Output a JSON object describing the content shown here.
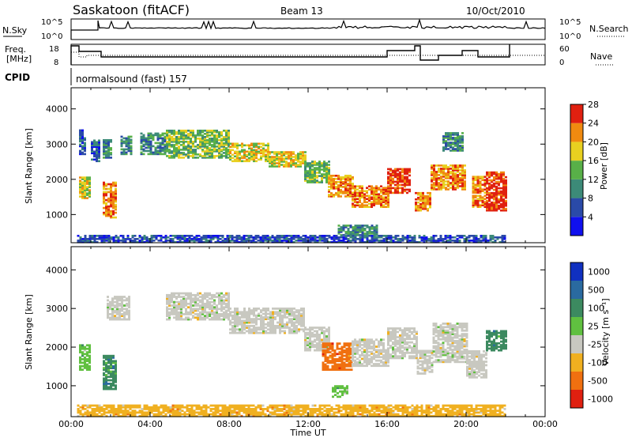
{
  "header": {
    "station": "Saskatoon (fitACF)",
    "beam": "Beam 13",
    "date": "10/Oct/2010"
  },
  "top_panels": {
    "nsky_label": "N.Sky",
    "nsky_ticks": [
      "10^5",
      "10^0"
    ],
    "nsearch_label": "N.Search",
    "freq_label_1": "Freq.",
    "freq_label_2": "[MHz]",
    "freq_ticks": [
      "18",
      "8"
    ],
    "nave_ticks": [
      "60",
      "0"
    ],
    "nave_label": "Nave",
    "cpid_label": "CPID",
    "cpid_value": "normalsound (fast) 157"
  },
  "chart_data": [
    {
      "type": "heatmap",
      "name": "power",
      "ylabel": "Slant Range [km]",
      "yticks": [
        1000,
        2000,
        3000,
        4000
      ],
      "ylim": [
        200,
        4600
      ],
      "xlim": [
        0,
        24
      ],
      "colorbar_label": "Power [dB]",
      "colorbar_ticks": [
        "4",
        "8",
        "12",
        "16",
        "20",
        "24",
        "28"
      ],
      "colorbar_colors": [
        "#1010ee",
        "#2a4aa8",
        "#3c8a78",
        "#58b048",
        "#e8d020",
        "#f08a10",
        "#e02010"
      ],
      "regions": [
        {
          "t0": 0.4,
          "t1": 1.0,
          "r0": 1450,
          "r1": 2050,
          "level": 4
        },
        {
          "t0": 0.4,
          "t1": 0.7,
          "r0": 2700,
          "r1": 3400,
          "level": 1
        },
        {
          "t0": 1.0,
          "t1": 1.4,
          "r0": 2500,
          "r1": 3100,
          "level": 1
        },
        {
          "t0": 1.6,
          "t1": 2.3,
          "r0": 900,
          "r1": 1900,
          "level": 5
        },
        {
          "t0": 1.6,
          "t1": 2.0,
          "r0": 2600,
          "r1": 3100,
          "level": 2
        },
        {
          "t0": 2.5,
          "t1": 3.0,
          "r0": 2700,
          "r1": 3200,
          "level": 2
        },
        {
          "t0": 3.5,
          "t1": 4.8,
          "r0": 2700,
          "r1": 3300,
          "level": 2
        },
        {
          "t0": 4.8,
          "t1": 8.0,
          "r0": 2600,
          "r1": 3400,
          "level": 3
        },
        {
          "t0": 8.0,
          "t1": 10.0,
          "r0": 2500,
          "r1": 3000,
          "level": 4
        },
        {
          "t0": 10.0,
          "t1": 11.8,
          "r0": 2350,
          "r1": 2800,
          "level": 4
        },
        {
          "t0": 11.8,
          "t1": 13.0,
          "r0": 1900,
          "r1": 2500,
          "level": 3
        },
        {
          "t0": 13.0,
          "t1": 14.2,
          "r0": 1500,
          "r1": 2100,
          "level": 5
        },
        {
          "t0": 14.2,
          "t1": 16.0,
          "r0": 1200,
          "r1": 1800,
          "level": 5
        },
        {
          "t0": 16.0,
          "t1": 17.2,
          "r0": 1600,
          "r1": 2300,
          "level": 6
        },
        {
          "t0": 17.4,
          "t1": 18.2,
          "r0": 1100,
          "r1": 1600,
          "level": 5
        },
        {
          "t0": 18.2,
          "t1": 20.0,
          "r0": 1700,
          "r1": 2400,
          "level": 5
        },
        {
          "t0": 20.3,
          "t1": 21.0,
          "r0": 1200,
          "r1": 2100,
          "level": 5
        },
        {
          "t0": 21.0,
          "t1": 22.0,
          "r0": 1100,
          "r1": 2200,
          "level": 6
        },
        {
          "t0": 18.8,
          "t1": 19.8,
          "r0": 2800,
          "r1": 3300,
          "level": 2
        },
        {
          "t0": 13.5,
          "t1": 15.5,
          "r0": 400,
          "r1": 700,
          "level": 2
        },
        {
          "t0": 0.3,
          "t1": 22.0,
          "r0": 200,
          "r1": 400,
          "level": 1
        }
      ]
    },
    {
      "type": "heatmap",
      "name": "velocity",
      "ylabel": "Slant Range [km]",
      "yticks": [
        1000,
        2000,
        3000,
        4000
      ],
      "ylim": [
        200,
        4600
      ],
      "xlim": [
        0,
        24
      ],
      "xlabel": "Time UT",
      "xticks": [
        "00:00",
        "04:00",
        "08:00",
        "12:00",
        "16:00",
        "20:00",
        "00:00"
      ],
      "colorbar_label": "Velocity [m s⁻¹]",
      "colorbar_ticks": [
        "1000",
        "500",
        "100",
        "25",
        "-25",
        "-100",
        "-500",
        "-1000"
      ],
      "colorbar_colors": [
        "#1030c0",
        "#2a6aa0",
        "#3c8a60",
        "#60c040",
        "#c8c8c0",
        "#f0b020",
        "#f07010",
        "#e02010"
      ],
      "regions": [
        {
          "t0": 0.4,
          "t1": 1.0,
          "r0": 1400,
          "r1": 2050,
          "level": 3
        },
        {
          "t0": 1.6,
          "t1": 2.3,
          "r0": 900,
          "r1": 1800,
          "level": 2
        },
        {
          "t0": 1.8,
          "t1": 3.0,
          "r0": 2700,
          "r1": 3300,
          "level": 4
        },
        {
          "t0": 4.8,
          "t1": 8.0,
          "r0": 2700,
          "r1": 3400,
          "level": 4
        },
        {
          "t0": 8.0,
          "t1": 11.8,
          "r0": 2350,
          "r1": 3000,
          "level": 4
        },
        {
          "t0": 11.8,
          "t1": 13.0,
          "r0": 1900,
          "r1": 2500,
          "level": 4
        },
        {
          "t0": 12.7,
          "t1": 14.2,
          "r0": 1400,
          "r1": 2100,
          "level": 6
        },
        {
          "t0": 14.2,
          "t1": 16.0,
          "r0": 1500,
          "r1": 2200,
          "level": 4
        },
        {
          "t0": 16.0,
          "t1": 17.5,
          "r0": 1700,
          "r1": 2500,
          "level": 4
        },
        {
          "t0": 17.5,
          "t1": 18.3,
          "r0": 1300,
          "r1": 1900,
          "level": 4
        },
        {
          "t0": 18.3,
          "t1": 20.0,
          "r0": 1600,
          "r1": 2600,
          "level": 4
        },
        {
          "t0": 20.0,
          "t1": 21.0,
          "r0": 1200,
          "r1": 1900,
          "level": 4
        },
        {
          "t0": 21.0,
          "t1": 22.0,
          "r0": 1900,
          "r1": 2400,
          "level": 2
        },
        {
          "t0": 13.2,
          "t1": 14.0,
          "r0": 700,
          "r1": 1000,
          "level": 3
        },
        {
          "t0": 0.3,
          "t1": 22.0,
          "r0": 200,
          "r1": 500,
          "level": 5
        }
      ]
    }
  ]
}
